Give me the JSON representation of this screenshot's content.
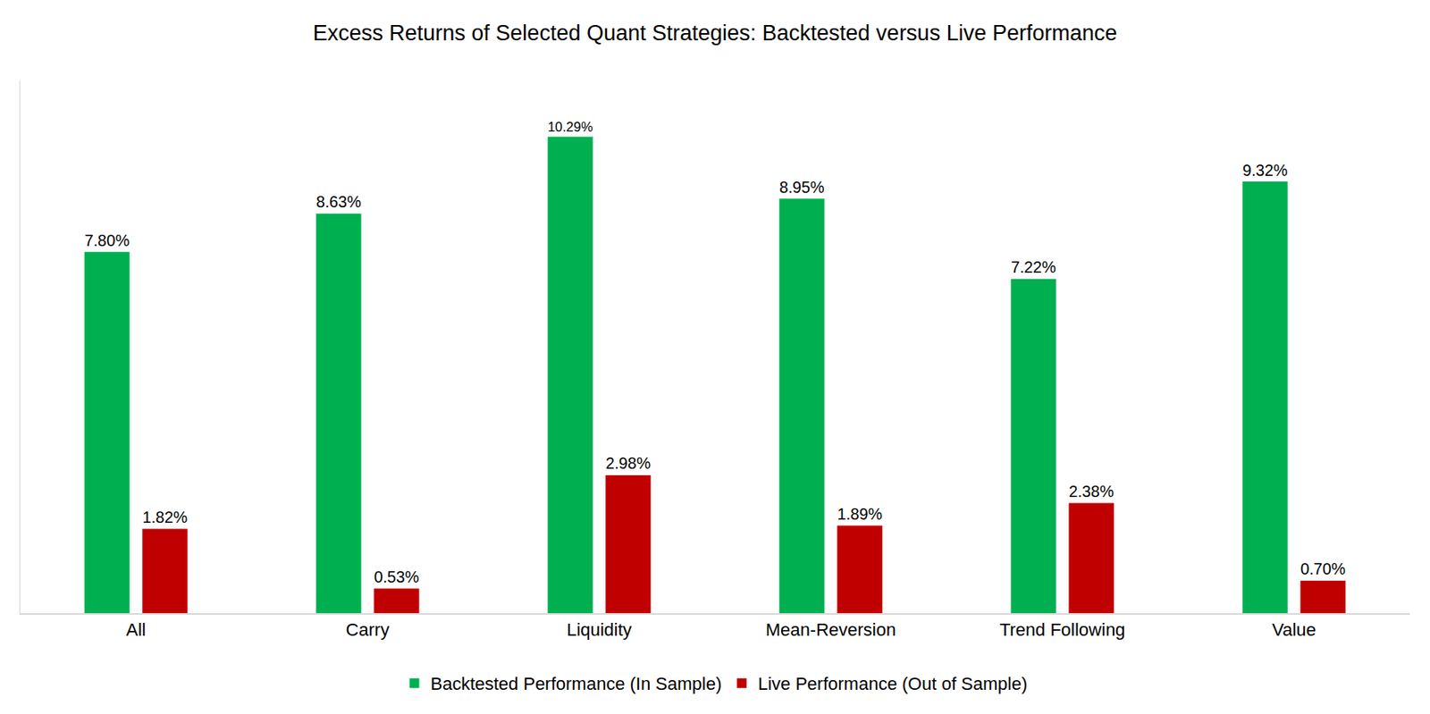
{
  "chart_data": {
    "type": "bar",
    "title": "Excess Returns of Selected Quant Strategies: Backtested versus Live Performance",
    "categories": [
      "All",
      "Carry",
      "Liquidity",
      "Mean-Reversion",
      "Trend Following",
      "Value"
    ],
    "series": [
      {
        "name": "Backtested Performance (In Sample)",
        "color": "#00b050",
        "values": [
          7.8,
          8.63,
          10.29,
          8.95,
          7.22,
          9.32
        ],
        "value_labels": [
          "7.80%",
          "8.63%",
          "10.29%",
          "8.95%",
          "7.22%",
          "9.32%"
        ]
      },
      {
        "name": "Live Performance (Out of Sample)",
        "color": "#c00000",
        "values": [
          1.82,
          0.53,
          2.98,
          1.89,
          2.38,
          0.7
        ],
        "value_labels": [
          "1.82%",
          "0.53%",
          "2.98%",
          "1.89%",
          "2.38%",
          "0.70%"
        ]
      }
    ],
    "ylim": [
      0,
      11.5
    ],
    "grid": false,
    "legend": "bottom",
    "data_labels": true,
    "tick_labels": "x"
  }
}
